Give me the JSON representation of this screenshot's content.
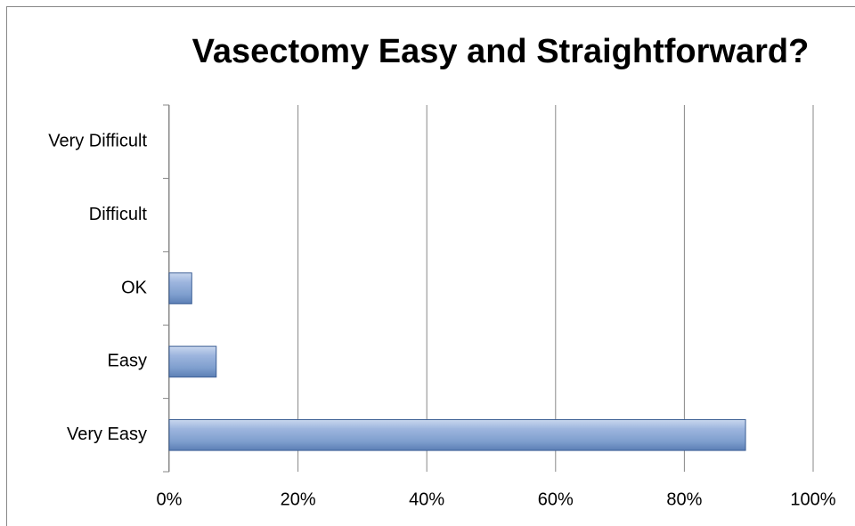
{
  "chart_data": {
    "type": "barh",
    "title": "Vasectomy Easy and Straightforward?",
    "categories": [
      "Very Difficult",
      "Difficult",
      "OK",
      "Easy",
      "Very Easy"
    ],
    "values": [
      0,
      0,
      3.5,
      7.3,
      89.5
    ],
    "color": "#7f9fce",
    "xlim": [
      0,
      100
    ],
    "xticks": [
      {
        "value": 0,
        "label": "0%"
      },
      {
        "value": 20,
        "label": "20%"
      },
      {
        "value": 40,
        "label": "40%"
      },
      {
        "value": 60,
        "label": "60%"
      },
      {
        "value": 80,
        "label": "80%"
      },
      {
        "value": 100,
        "label": "100%"
      }
    ],
    "grid": true
  }
}
